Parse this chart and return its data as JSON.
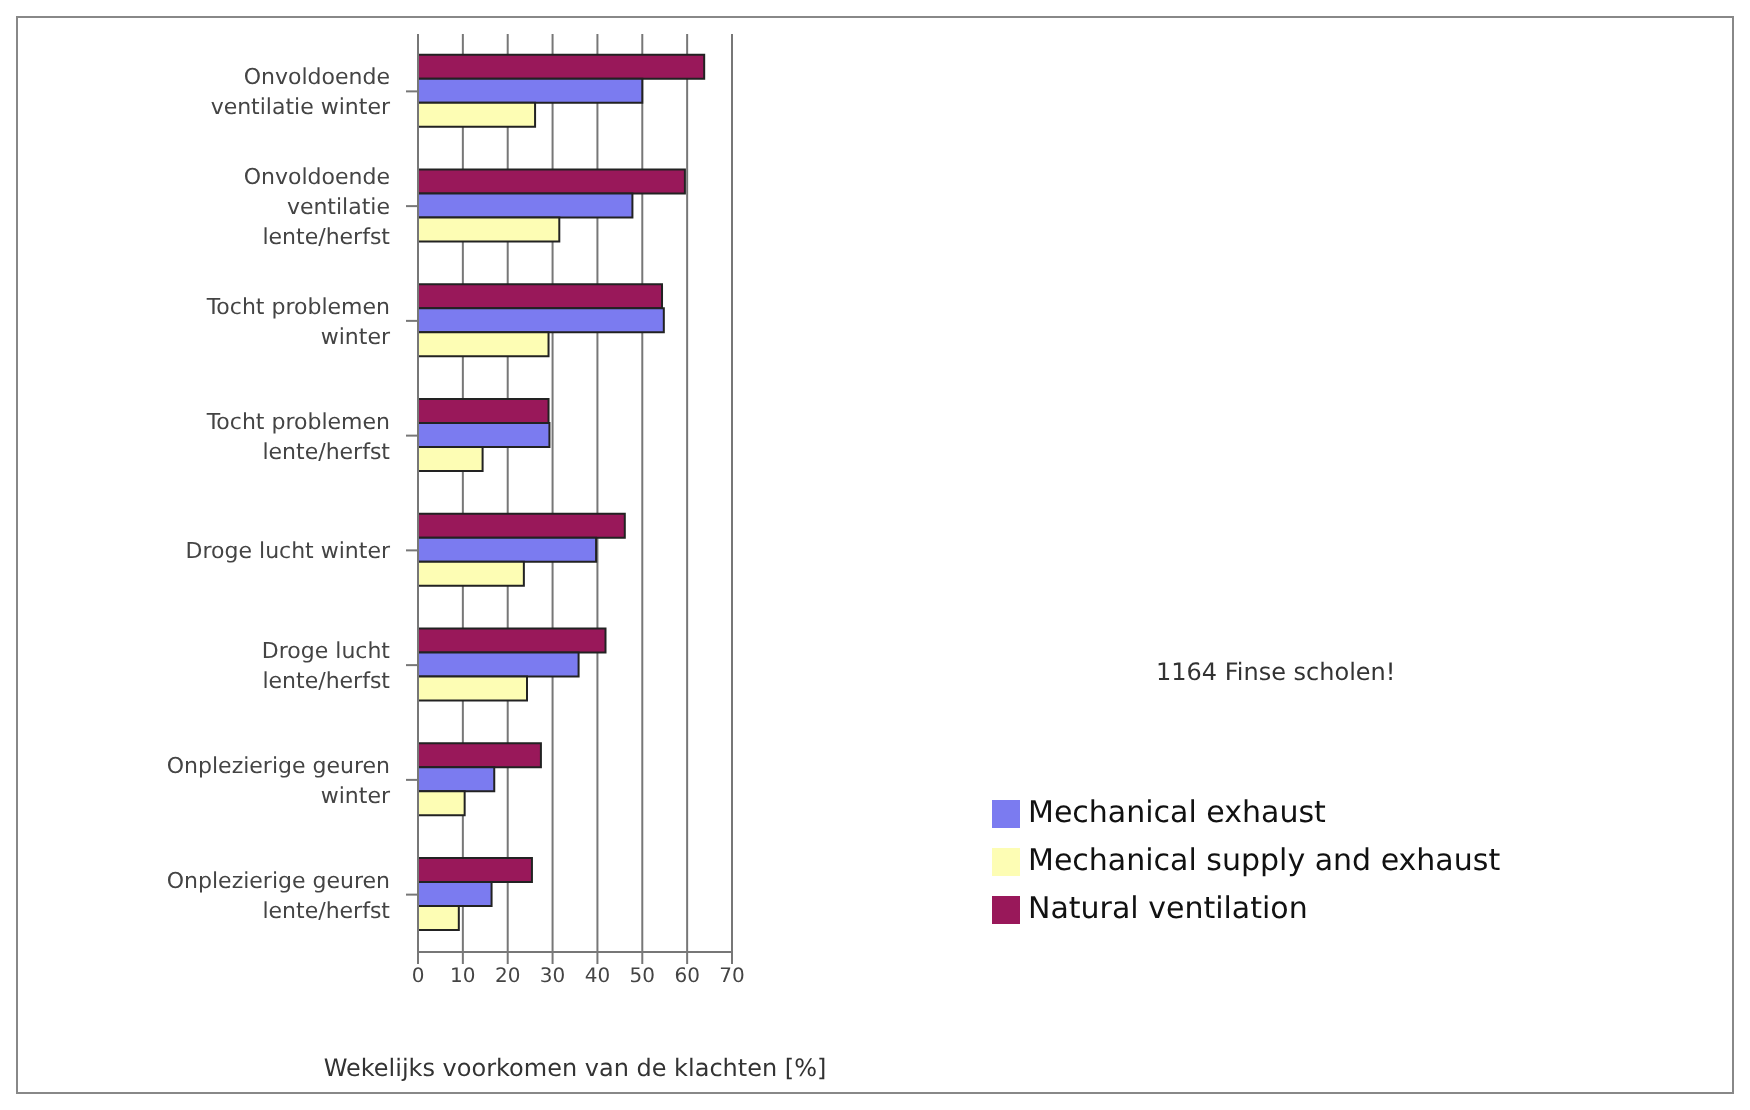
{
  "chart_data": {
    "type": "bar",
    "orientation": "horizontal",
    "xlabel": "Wekelijks voorkomen van de klachten [%]",
    "categories": [
      "Onvoldoende ventilatie winter",
      "Onvoldoende ventilatie lente/herfst",
      "Tocht problemen winter",
      "Tocht problemen lente/herfst",
      "Droge lucht winter",
      "Droge lucht lente/herfst",
      "Onplezierige geuren winter",
      "Onplezierige geuren lente/herfst"
    ],
    "series": [
      {
        "name": "Natural ventilation",
        "color": "#99185a",
        "values": [
          63.8,
          59.5,
          54.4,
          29.1,
          46.1,
          41.8,
          27.4,
          25.4
        ]
      },
      {
        "name": "Mechanical exhaust",
        "color": "#7b7bf0",
        "values": [
          50.0,
          47.8,
          54.8,
          29.3,
          39.7,
          35.8,
          17.0,
          16.4
        ]
      },
      {
        "name": "Mechanical supply and exhaust",
        "color": "#fdfdb4",
        "values": [
          26.1,
          31.5,
          29.1,
          14.4,
          23.6,
          24.3,
          10.4,
          9.1
        ]
      }
    ],
    "xlim": [
      0,
      70
    ],
    "xticks": [
      0,
      10,
      20,
      30,
      40,
      50,
      60,
      70
    ],
    "grid": "x",
    "legend": "bottom right",
    "annotations": [
      "1164 Finse scholen!"
    ]
  }
}
